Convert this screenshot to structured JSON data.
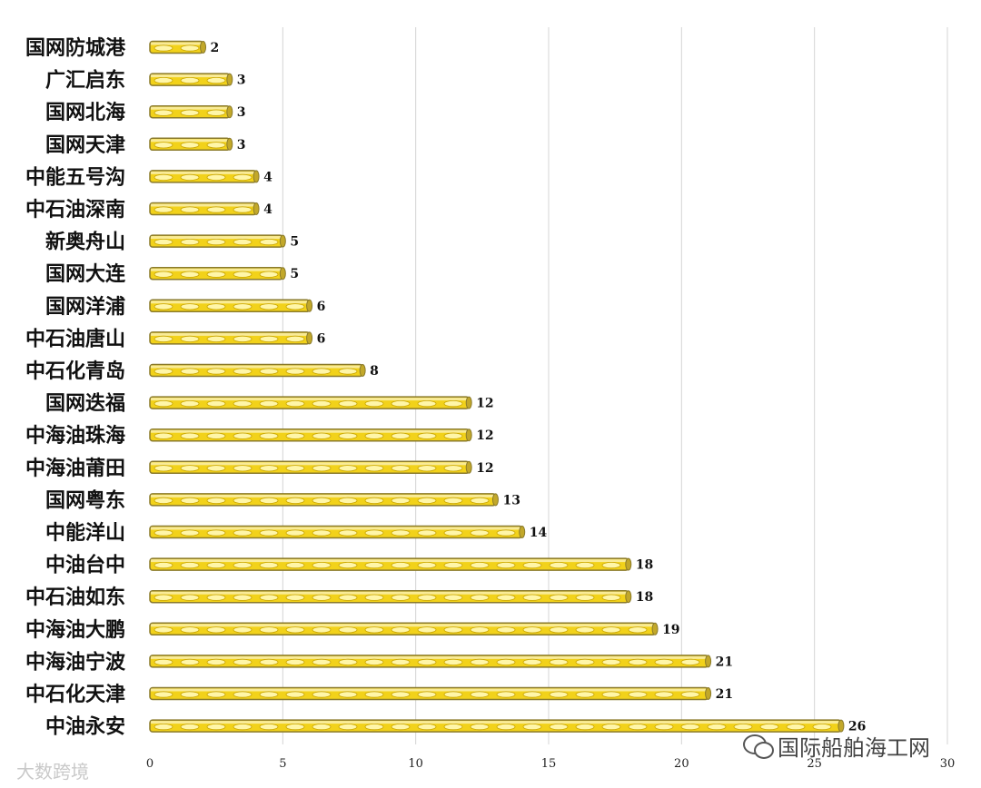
{
  "chart_data": {
    "type": "bar",
    "orientation": "horizontal",
    "categories": [
      "国网防城港",
      "广汇启东",
      "国网北海",
      "国网天津",
      "中能五号沟",
      "中石油深南",
      "新奥舟山",
      "国网大连",
      "国网洋浦",
      "中石油唐山",
      "中石化青岛",
      "国网迭福",
      "中海油珠海",
      "中海油莆田",
      "国网粤东",
      "中能洋山",
      "中油台中",
      "中石油如东",
      "中海油大鹏",
      "中海油宁波",
      "中石化天津",
      "中油永安"
    ],
    "values": [
      2,
      3,
      3,
      3,
      4,
      4,
      5,
      5,
      6,
      6,
      8,
      12,
      12,
      12,
      13,
      14,
      18,
      18,
      19,
      21,
      21,
      26
    ],
    "xlim": [
      0,
      30
    ],
    "xticks": [
      0,
      5,
      10,
      15,
      20,
      25,
      30
    ],
    "title": "",
    "xlabel": "",
    "ylabel": "",
    "grid": "vertical",
    "legend": "none",
    "colors": {
      "bar_fill": "#f2d21a",
      "bar_edge": "#8a7a2a",
      "dash": "#fff6a8",
      "grid": "#d4d4d4"
    }
  },
  "watermarks": {
    "left": "大数跨境",
    "right": "国际船舶海工网"
  }
}
